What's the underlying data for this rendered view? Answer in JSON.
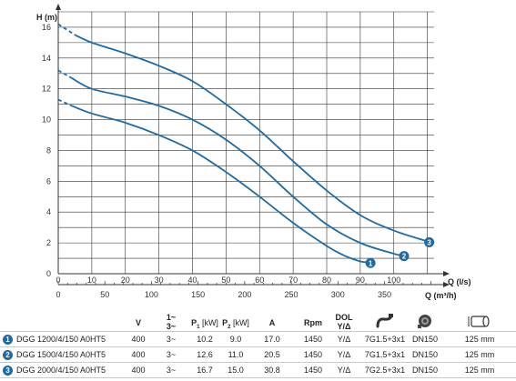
{
  "chart_data": {
    "type": "line",
    "ylabel": "H (m)",
    "xlabel": "Q (l/s)",
    "x2label": "Q (m³/h)",
    "xlim": [
      0,
      112
    ],
    "ylim": [
      0,
      17
    ],
    "x_ticks": [
      "0",
      "10",
      "20",
      "30",
      "40",
      "50",
      "60",
      "70",
      "80",
      "90",
      "100"
    ],
    "y_ticks": [
      "0",
      "2",
      "4",
      "6",
      "8",
      "10",
      "12",
      "14",
      "16"
    ],
    "x2_ticks": [
      "0",
      "50",
      "100",
      "150",
      "200",
      "250",
      "300",
      "350"
    ],
    "series": [
      {
        "name": "1",
        "dashed": [
          [
            0,
            11.3
          ],
          [
            4,
            10.9
          ]
        ],
        "x": [
          4,
          10,
          20,
          30,
          40,
          50,
          60,
          70,
          80,
          85,
          90,
          92.5
        ],
        "y": [
          10.9,
          10.4,
          9.8,
          9.0,
          8.0,
          6.6,
          5.0,
          3.3,
          1.8,
          1.2,
          0.8,
          0.75
        ]
      },
      {
        "name": "2",
        "dashed": [
          [
            0,
            13.2
          ],
          [
            4,
            12.7
          ]
        ],
        "x": [
          4,
          10,
          20,
          30,
          40,
          50,
          60,
          70,
          80,
          90,
          100,
          102.5
        ],
        "y": [
          12.7,
          12.0,
          11.5,
          10.9,
          10.0,
          8.7,
          7.0,
          5.0,
          3.2,
          2.0,
          1.3,
          1.2
        ]
      },
      {
        "name": "3",
        "dashed": [
          [
            0,
            16.2
          ],
          [
            5,
            15.5
          ]
        ],
        "x": [
          5,
          10,
          20,
          30,
          40,
          50,
          60,
          70,
          80,
          90,
          100,
          110
        ],
        "y": [
          15.5,
          15.0,
          14.3,
          13.5,
          12.5,
          11.0,
          9.3,
          7.3,
          5.4,
          3.8,
          2.8,
          2.1
        ]
      }
    ],
    "grid": true,
    "line_color": "#1f6aa5"
  },
  "table": {
    "headers": {
      "v": "V",
      "phase_top": "1~",
      "phase_bot": "3~",
      "p1_main": "P",
      "p1_sub": "1",
      "p1_unit": "[kW]",
      "p2_main": "P",
      "p2_sub": "2",
      "p2_unit": "[kW]",
      "a": "A",
      "rpm": "Rpm",
      "dol_top": "DOL",
      "dol_bot": "Y/Δ"
    },
    "rows": [
      {
        "num": "1",
        "model": "DGG 1200/4/150 A0HT5",
        "v": "400",
        "phase": "3~",
        "p1": "10.2",
        "p2": "9.0",
        "a": "17.0",
        "rpm": "1450",
        "dol": "Y/Δ",
        "cable": "7G1.5+3x1",
        "dn": "DN150",
        "dim": "125 mm"
      },
      {
        "num": "2",
        "model": "DGG 1500/4/150 A0HT5",
        "v": "400",
        "phase": "3~",
        "p1": "12.6",
        "p2": "11.0",
        "a": "20.5",
        "rpm": "1450",
        "dol": "Y/Δ",
        "cable": "7G1.5+3x1",
        "dn": "DN150",
        "dim": "125 mm"
      },
      {
        "num": "3",
        "model": "DGG 2000/4/150 A0HT5",
        "v": "400",
        "phase": "3~",
        "p1": "16.7",
        "p2": "15.0",
        "a": "30.8",
        "rpm": "1450",
        "dol": "Y/Δ",
        "cable": "7G2.5+3x1",
        "dn": "DN150",
        "dim": "125 mm"
      }
    ],
    "icons": [
      "cable-icon",
      "flange-icon",
      "pipe-diameter-icon"
    ]
  }
}
